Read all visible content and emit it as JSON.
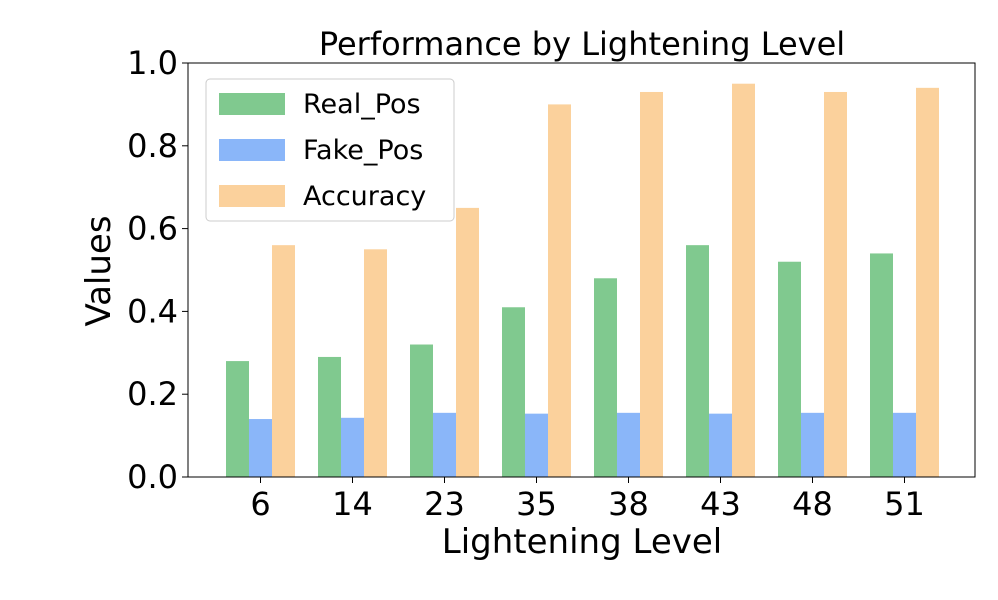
{
  "chart_data": {
    "type": "bar",
    "title": "Performance by Lightening Level",
    "xlabel": "Lightening Level",
    "ylabel": "Values",
    "ylim": [
      0,
      1.0
    ],
    "yticks": [
      "0.0",
      "0.2",
      "0.4",
      "0.6",
      "0.8",
      "1.0"
    ],
    "categories": [
      "6",
      "14",
      "23",
      "35",
      "38",
      "43",
      "48",
      "51"
    ],
    "series": [
      {
        "name": "Real_Pos",
        "color": "#80c98f",
        "values": [
          0.28,
          0.29,
          0.32,
          0.41,
          0.48,
          0.56,
          0.52,
          0.54
        ]
      },
      {
        "name": "Fake_Pos",
        "color": "#8ab6f9",
        "values": [
          0.14,
          0.143,
          0.155,
          0.153,
          0.155,
          0.153,
          0.155,
          0.155
        ]
      },
      {
        "name": "Accuracy",
        "color": "#fbd19c",
        "values": [
          0.56,
          0.55,
          0.65,
          0.9,
          0.93,
          0.95,
          0.93,
          0.94
        ]
      }
    ],
    "legend_position": "top-left",
    "grid": false
  }
}
